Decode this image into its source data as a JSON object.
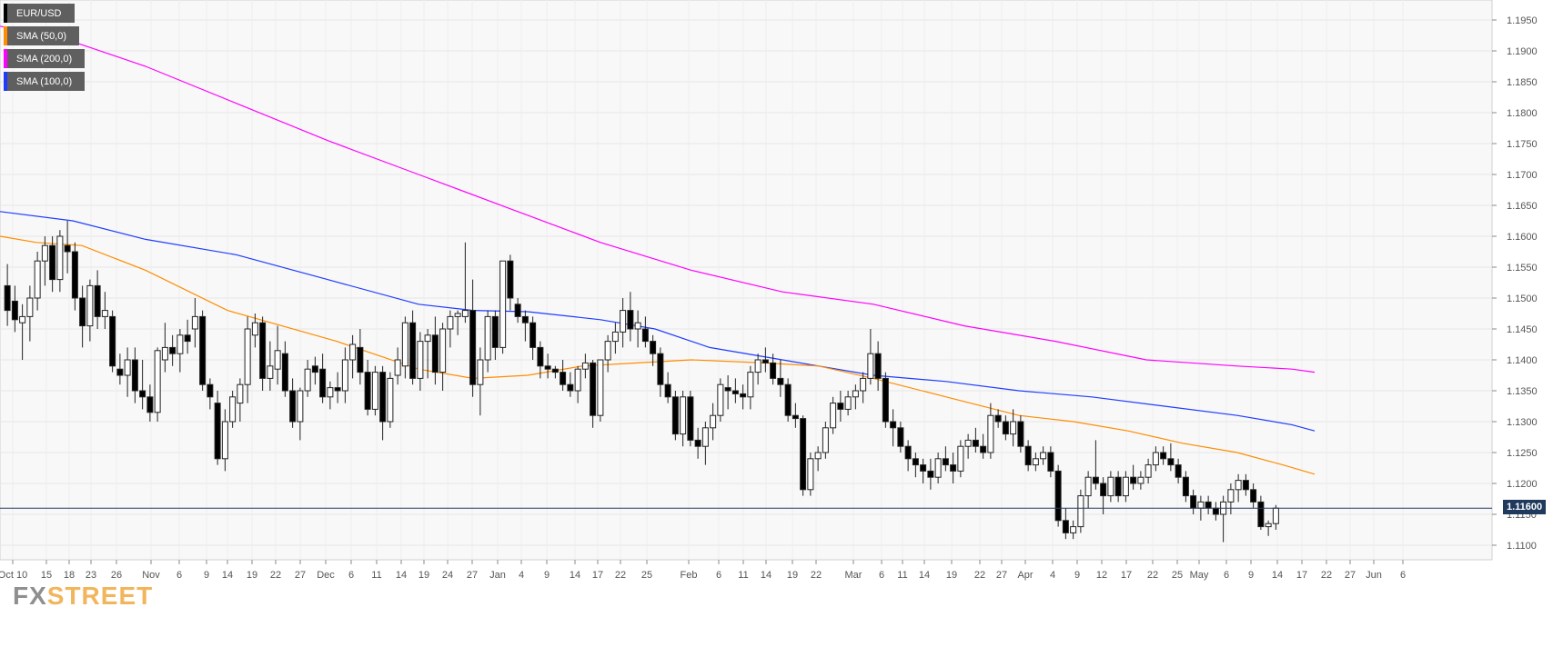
{
  "legend": [
    {
      "label": "EUR/USD",
      "color": "#000000"
    },
    {
      "label": "SMA (50,0)",
      "color": "#ff8c00"
    },
    {
      "label": "SMA (200,0)",
      "color": "#ff00ff"
    },
    {
      "label": "SMA (100,0)",
      "color": "#1e3cff"
    }
  ],
  "logo": {
    "part1": "FX",
    "part2": "STREET"
  },
  "current_price_label": "1.11600",
  "chart_data": {
    "type": "candlestick",
    "symbol": "EUR/USD",
    "grid": true,
    "y_range": [
      1.105,
      1.1975
    ],
    "y_ticks": [
      "1.1100",
      "1.1150",
      "1.1200",
      "1.1250",
      "1.1300",
      "1.1350",
      "1.1400",
      "1.1450",
      "1.1500",
      "1.1550",
      "1.1600",
      "1.1650",
      "1.1700",
      "1.1750",
      "1.1800",
      "1.1850",
      "1.1900",
      "1.1950"
    ],
    "x_ticks": [
      "Oct 10",
      "15",
      "18",
      "23",
      "26",
      "Nov",
      "6",
      "9",
      "14",
      "19",
      "22",
      "27",
      "Dec",
      "6",
      "11",
      "14",
      "19",
      "24",
      "27",
      "Jan",
      "4",
      "9",
      "14",
      "17",
      "22",
      "25",
      "Feb",
      "6",
      "11",
      "14",
      "19",
      "22",
      "Mar",
      "6",
      "11",
      "14",
      "19",
      "22",
      "27",
      "Apr",
      "4",
      "9",
      "12",
      "17",
      "22",
      "25",
      "May",
      "6",
      "9",
      "14",
      "17",
      "22",
      "27",
      "Jun",
      "6"
    ],
    "current_price": 1.116,
    "candles": [
      [
        1.152,
        1.1555,
        1.1455,
        1.148
      ],
      [
        1.1495,
        1.152,
        1.1445,
        1.1465
      ],
      [
        1.146,
        1.149,
        1.14,
        1.147
      ],
      [
        1.147,
        1.152,
        1.143,
        1.15
      ],
      [
        1.15,
        1.1575,
        1.148,
        1.156
      ],
      [
        1.156,
        1.16,
        1.152,
        1.1585
      ],
      [
        1.1585,
        1.16,
        1.151,
        1.153
      ],
      [
        1.153,
        1.161,
        1.151,
        1.16
      ],
      [
        1.1585,
        1.1625,
        1.154,
        1.1575
      ],
      [
        1.1575,
        1.159,
        1.148,
        1.15
      ],
      [
        1.15,
        1.152,
        1.142,
        1.1455
      ],
      [
        1.1455,
        1.153,
        1.143,
        1.152
      ],
      [
        1.152,
        1.1545,
        1.145,
        1.147
      ],
      [
        1.147,
        1.151,
        1.145,
        1.148
      ],
      [
        1.147,
        1.148,
        1.138,
        1.139
      ],
      [
        1.1385,
        1.141,
        1.136,
        1.1375
      ],
      [
        1.1375,
        1.142,
        1.134,
        1.14
      ],
      [
        1.14,
        1.142,
        1.133,
        1.135
      ],
      [
        1.135,
        1.14,
        1.132,
        1.134
      ],
      [
        1.134,
        1.136,
        1.13,
        1.1315
      ],
      [
        1.1315,
        1.142,
        1.13,
        1.1415
      ],
      [
        1.14,
        1.146,
        1.138,
        1.142
      ],
      [
        1.142,
        1.144,
        1.139,
        1.141
      ],
      [
        1.141,
        1.145,
        1.138,
        1.144
      ],
      [
        1.144,
        1.1465,
        1.141,
        1.143
      ],
      [
        1.145,
        1.15,
        1.142,
        1.147
      ],
      [
        1.147,
        1.148,
        1.135,
        1.136
      ],
      [
        1.136,
        1.137,
        1.132,
        1.134
      ],
      [
        1.133,
        1.135,
        1.123,
        1.124
      ],
      [
        1.124,
        1.132,
        1.122,
        1.13
      ],
      [
        1.13,
        1.135,
        1.129,
        1.134
      ],
      [
        1.133,
        1.137,
        1.13,
        1.136
      ],
      [
        1.136,
        1.147,
        1.133,
        1.145
      ],
      [
        1.144,
        1.1475,
        1.142,
        1.146
      ],
      [
        1.146,
        1.147,
        1.135,
        1.137
      ],
      [
        1.137,
        1.143,
        1.135,
        1.139
      ],
      [
        1.1385,
        1.1455,
        1.136,
        1.1415
      ],
      [
        1.141,
        1.143,
        1.134,
        1.135
      ],
      [
        1.135,
        1.137,
        1.129,
        1.13
      ],
      [
        1.13,
        1.1355,
        1.127,
        1.135
      ],
      [
        1.135,
        1.14,
        1.134,
        1.1385
      ],
      [
        1.139,
        1.1405,
        1.136,
        1.138
      ],
      [
        1.1385,
        1.141,
        1.133,
        1.134
      ],
      [
        1.134,
        1.1365,
        1.132,
        1.1355
      ],
      [
        1.1355,
        1.138,
        1.133,
        1.135
      ],
      [
        1.135,
        1.142,
        1.133,
        1.14
      ],
      [
        1.14,
        1.144,
        1.137,
        1.1425
      ],
      [
        1.142,
        1.145,
        1.136,
        1.138
      ],
      [
        1.138,
        1.14,
        1.131,
        1.132
      ],
      [
        1.132,
        1.139,
        1.131,
        1.138
      ],
      [
        1.138,
        1.139,
        1.127,
        1.13
      ],
      [
        1.13,
        1.138,
        1.129,
        1.137
      ],
      [
        1.1375,
        1.142,
        1.136,
        1.14
      ],
      [
        1.139,
        1.147,
        1.137,
        1.146
      ],
      [
        1.146,
        1.148,
        1.136,
        1.137
      ],
      [
        1.137,
        1.1445,
        1.135,
        1.143
      ],
      [
        1.143,
        1.145,
        1.137,
        1.144
      ],
      [
        1.144,
        1.147,
        1.136,
        1.138
      ],
      [
        1.138,
        1.146,
        1.135,
        1.145
      ],
      [
        1.145,
        1.148,
        1.142,
        1.147
      ],
      [
        1.147,
        1.148,
        1.144,
        1.1475
      ],
      [
        1.147,
        1.159,
        1.146,
        1.148
      ],
      [
        1.148,
        1.153,
        1.134,
        1.136
      ],
      [
        1.136,
        1.142,
        1.131,
        1.14
      ],
      [
        1.14,
        1.148,
        1.138,
        1.147
      ],
      [
        1.147,
        1.148,
        1.14,
        1.142
      ],
      [
        1.142,
        1.156,
        1.141,
        1.156
      ],
      [
        1.156,
        1.157,
        1.148,
        1.15
      ],
      [
        1.149,
        1.15,
        1.146,
        1.147
      ],
      [
        1.147,
        1.148,
        1.143,
        1.146
      ],
      [
        1.146,
        1.147,
        1.14,
        1.142
      ],
      [
        1.142,
        1.143,
        1.137,
        1.139
      ],
      [
        1.139,
        1.141,
        1.137,
        1.1385
      ],
      [
        1.1385,
        1.139,
        1.137,
        1.138
      ],
      [
        1.138,
        1.14,
        1.135,
        1.136
      ],
      [
        1.136,
        1.138,
        1.134,
        1.135
      ],
      [
        1.135,
        1.139,
        1.133,
        1.1385
      ],
      [
        1.1385,
        1.141,
        1.137,
        1.1395
      ],
      [
        1.1395,
        1.14,
        1.129,
        1.131
      ],
      [
        1.131,
        1.14,
        1.13,
        1.14
      ],
      [
        1.14,
        1.144,
        1.138,
        1.143
      ],
      [
        1.143,
        1.146,
        1.141,
        1.1445
      ],
      [
        1.1445,
        1.15,
        1.142,
        1.148
      ],
      [
        1.148,
        1.151,
        1.143,
        1.145
      ],
      [
        1.145,
        1.148,
        1.142,
        1.146
      ],
      [
        1.145,
        1.147,
        1.142,
        1.143
      ],
      [
        1.143,
        1.144,
        1.139,
        1.141
      ],
      [
        1.141,
        1.142,
        1.134,
        1.136
      ],
      [
        1.136,
        1.138,
        1.133,
        1.134
      ],
      [
        1.134,
        1.135,
        1.127,
        1.128
      ],
      [
        1.128,
        1.135,
        1.126,
        1.134
      ],
      [
        1.134,
        1.135,
        1.126,
        1.127
      ],
      [
        1.127,
        1.129,
        1.124,
        1.126
      ],
      [
        1.126,
        1.13,
        1.123,
        1.129
      ],
      [
        1.129,
        1.133,
        1.127,
        1.131
      ],
      [
        1.131,
        1.137,
        1.13,
        1.136
      ],
      [
        1.1355,
        1.1375,
        1.132,
        1.135
      ],
      [
        1.135,
        1.137,
        1.133,
        1.1345
      ],
      [
        1.1345,
        1.136,
        1.132,
        1.134
      ],
      [
        1.134,
        1.139,
        1.132,
        1.138
      ],
      [
        1.138,
        1.141,
        1.136,
        1.14
      ],
      [
        1.14,
        1.142,
        1.138,
        1.1395
      ],
      [
        1.1395,
        1.141,
        1.136,
        1.137
      ],
      [
        1.137,
        1.14,
        1.134,
        1.136
      ],
      [
        1.136,
        1.137,
        1.13,
        1.131
      ],
      [
        1.131,
        1.133,
        1.129,
        1.1305
      ],
      [
        1.1305,
        1.131,
        1.118,
        1.119
      ],
      [
        1.119,
        1.125,
        1.118,
        1.124
      ],
      [
        1.124,
        1.126,
        1.122,
        1.125
      ],
      [
        1.125,
        1.13,
        1.124,
        1.129
      ],
      [
        1.129,
        1.134,
        1.128,
        1.133
      ],
      [
        1.133,
        1.135,
        1.13,
        1.132
      ],
      [
        1.132,
        1.135,
        1.131,
        1.134
      ],
      [
        1.134,
        1.136,
        1.132,
        1.135
      ],
      [
        1.135,
        1.138,
        1.133,
        1.137
      ],
      [
        1.137,
        1.145,
        1.136,
        1.141
      ],
      [
        1.141,
        1.143,
        1.135,
        1.137
      ],
      [
        1.137,
        1.138,
        1.129,
        1.13
      ],
      [
        1.13,
        1.132,
        1.126,
        1.129
      ],
      [
        1.129,
        1.13,
        1.125,
        1.126
      ],
      [
        1.126,
        1.127,
        1.122,
        1.124
      ],
      [
        1.124,
        1.125,
        1.121,
        1.123
      ],
      [
        1.123,
        1.124,
        1.12,
        1.122
      ],
      [
        1.122,
        1.124,
        1.119,
        1.121
      ],
      [
        1.121,
        1.125,
        1.12,
        1.124
      ],
      [
        1.124,
        1.126,
        1.122,
        1.123
      ],
      [
        1.123,
        1.125,
        1.12,
        1.122
      ],
      [
        1.122,
        1.127,
        1.121,
        1.126
      ],
      [
        1.126,
        1.128,
        1.124,
        1.127
      ],
      [
        1.127,
        1.129,
        1.125,
        1.126
      ],
      [
        1.126,
        1.128,
        1.124,
        1.125
      ],
      [
        1.125,
        1.133,
        1.124,
        1.131
      ],
      [
        1.131,
        1.132,
        1.129,
        1.13
      ],
      [
        1.13,
        1.131,
        1.127,
        1.128
      ],
      [
        1.128,
        1.132,
        1.126,
        1.13
      ],
      [
        1.13,
        1.131,
        1.125,
        1.126
      ],
      [
        1.126,
        1.127,
        1.122,
        1.123
      ],
      [
        1.123,
        1.125,
        1.122,
        1.124
      ],
      [
        1.124,
        1.126,
        1.123,
        1.125
      ],
      [
        1.125,
        1.126,
        1.121,
        1.122
      ],
      [
        1.122,
        1.123,
        1.113,
        1.114
      ],
      [
        1.114,
        1.116,
        1.111,
        1.112
      ],
      [
        1.112,
        1.114,
        1.111,
        1.113
      ],
      [
        1.113,
        1.119,
        1.112,
        1.118
      ],
      [
        1.118,
        1.122,
        1.116,
        1.121
      ],
      [
        1.121,
        1.127,
        1.119,
        1.12
      ],
      [
        1.12,
        1.121,
        1.115,
        1.118
      ],
      [
        1.118,
        1.122,
        1.117,
        1.121
      ],
      [
        1.121,
        1.122,
        1.117,
        1.118
      ],
      [
        1.118,
        1.122,
        1.117,
        1.121
      ],
      [
        1.121,
        1.123,
        1.119,
        1.12
      ],
      [
        1.12,
        1.122,
        1.119,
        1.121
      ],
      [
        1.121,
        1.124,
        1.12,
        1.123
      ],
      [
        1.123,
        1.126,
        1.122,
        1.125
      ],
      [
        1.125,
        1.126,
        1.123,
        1.124
      ],
      [
        1.124,
        1.1265,
        1.122,
        1.123
      ],
      [
        1.123,
        1.124,
        1.12,
        1.121
      ],
      [
        1.121,
        1.122,
        1.117,
        1.118
      ],
      [
        1.118,
        1.119,
        1.115,
        1.116
      ],
      [
        1.116,
        1.118,
        1.114,
        1.117
      ],
      [
        1.117,
        1.118,
        1.115,
        1.116
      ],
      [
        1.116,
        1.117,
        1.114,
        1.115
      ],
      [
        1.115,
        1.118,
        1.1105,
        1.117
      ],
      [
        1.117,
        1.12,
        1.115,
        1.119
      ],
      [
        1.119,
        1.1215,
        1.117,
        1.1205
      ],
      [
        1.1205,
        1.1215,
        1.118,
        1.119
      ],
      [
        1.119,
        1.12,
        1.116,
        1.117
      ],
      [
        1.117,
        1.118,
        1.1125,
        1.113
      ],
      [
        1.113,
        1.114,
        1.1115,
        1.1135
      ],
      [
        1.1135,
        1.1165,
        1.1125,
        1.116
      ]
    ],
    "sma50": [
      [
        0,
        1.16
      ],
      [
        40,
        1.159
      ],
      [
        90,
        1.1585
      ],
      [
        160,
        1.1545
      ],
      [
        250,
        1.148
      ],
      [
        370,
        1.143
      ],
      [
        460,
        1.1385
      ],
      [
        520,
        1.137
      ],
      [
        580,
        1.1375
      ],
      [
        640,
        1.139
      ],
      [
        700,
        1.1395
      ],
      [
        760,
        1.14
      ],
      [
        840,
        1.1395
      ],
      [
        900,
        1.139
      ],
      [
        960,
        1.137
      ],
      [
        1040,
        1.134
      ],
      [
        1120,
        1.131
      ],
      [
        1180,
        1.13
      ],
      [
        1240,
        1.1285
      ],
      [
        1300,
        1.1265
      ],
      [
        1360,
        1.125
      ],
      [
        1410,
        1.123
      ],
      [
        1445,
        1.1215
      ]
    ],
    "sma100": [
      [
        0,
        1.164
      ],
      [
        80,
        1.1625
      ],
      [
        160,
        1.1595
      ],
      [
        260,
        1.157
      ],
      [
        360,
        1.153
      ],
      [
        460,
        1.149
      ],
      [
        520,
        1.148
      ],
      [
        580,
        1.1478
      ],
      [
        660,
        1.1465
      ],
      [
        720,
        1.145
      ],
      [
        780,
        1.142
      ],
      [
        860,
        1.14
      ],
      [
        960,
        1.1375
      ],
      [
        1040,
        1.1365
      ],
      [
        1120,
        1.135
      ],
      [
        1200,
        1.134
      ],
      [
        1280,
        1.1325
      ],
      [
        1360,
        1.131
      ],
      [
        1420,
        1.1295
      ],
      [
        1445,
        1.1285
      ]
    ],
    "sma200": [
      [
        0,
        1.194
      ],
      [
        80,
        1.1915
      ],
      [
        160,
        1.1875
      ],
      [
        260,
        1.1815
      ],
      [
        360,
        1.1755
      ],
      [
        460,
        1.17
      ],
      [
        560,
        1.1645
      ],
      [
        660,
        1.159
      ],
      [
        760,
        1.1545
      ],
      [
        860,
        1.151
      ],
      [
        960,
        1.149
      ],
      [
        1060,
        1.1455
      ],
      [
        1160,
        1.143
      ],
      [
        1260,
        1.14
      ],
      [
        1360,
        1.139
      ],
      [
        1420,
        1.1385
      ],
      [
        1445,
        1.138
      ]
    ]
  }
}
